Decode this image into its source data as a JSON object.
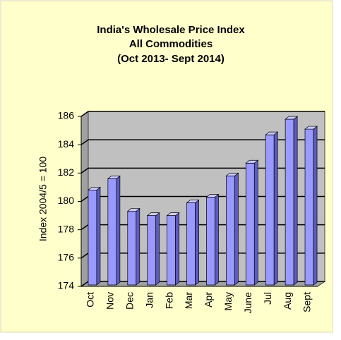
{
  "chart_data": {
    "type": "bar",
    "title": [
      "India's  Wholesale Price Index",
      "All Commodities",
      "(Oct 2013- Sept 2014)"
    ],
    "y_label": "Index 2004/5 = 100",
    "categories": [
      "Oct",
      "Nov",
      "Dec",
      "Jan",
      "Feb",
      "Mar",
      "Apr",
      "May",
      "June",
      "Jul",
      "Aug",
      "Sept"
    ],
    "values": [
      180.7,
      181.5,
      179.2,
      178.9,
      178.9,
      179.8,
      180.2,
      181.7,
      182.6,
      184.6,
      185.7,
      185.0
    ],
    "color": "#9999ff",
    "ylim": [
      174,
      186
    ],
    "yticks": [
      174,
      176,
      178,
      180,
      182,
      184,
      186
    ],
    "grid": true
  }
}
